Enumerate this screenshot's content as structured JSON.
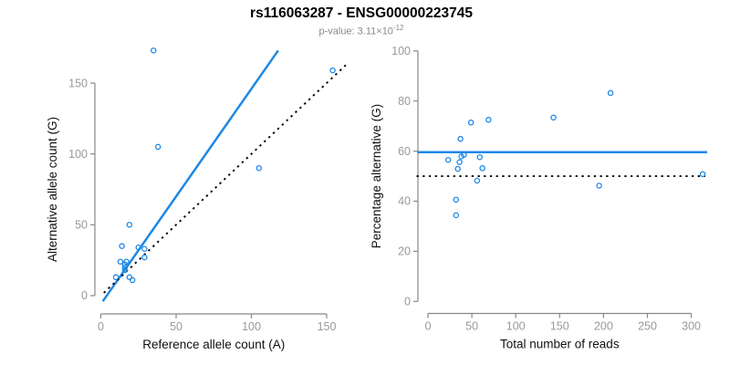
{
  "title": "rs116063287 - ENSG00000223745",
  "subtitle": {
    "text": "p-value: 3.11×10",
    "exponent": "-12"
  },
  "colors": {
    "accent_blue": "#1E88E5",
    "reference_black": "#000000",
    "axis_line": "#888888",
    "tick_label": "#999999",
    "axis_title": "#111111",
    "title_text": "#000000",
    "subtitle_text": "#8A8A8A",
    "background": "#FFFFFF"
  },
  "chart_data": [
    {
      "type": "scatter",
      "panel": "left",
      "xlabel": "Reference allele count (A)",
      "ylabel": "Alternative allele count (G)",
      "xticks": [
        0,
        50,
        100,
        150
      ],
      "yticks": [
        0,
        50,
        100,
        150
      ],
      "xlim": [
        -4,
        162
      ],
      "ylim": [
        -6,
        178
      ],
      "grid": false,
      "legend": "none",
      "points": [
        [
          35,
          173
        ],
        [
          38,
          105
        ],
        [
          105,
          90
        ],
        [
          154,
          159
        ],
        [
          19,
          50
        ],
        [
          14,
          35
        ],
        [
          13,
          24
        ],
        [
          16,
          22
        ],
        [
          17,
          24
        ],
        [
          25,
          34
        ],
        [
          10,
          13
        ],
        [
          16,
          20
        ],
        [
          16,
          18
        ],
        [
          29,
          33
        ],
        [
          29,
          27
        ],
        [
          19,
          13
        ],
        [
          21,
          11
        ]
      ],
      "lines": [
        {
          "name": "regression-line",
          "style": "solid",
          "color": "#1E88E5",
          "x1": 1.3,
          "y1": -4,
          "x2": 117.8,
          "y2": 173
        },
        {
          "name": "identity-line",
          "style": "dotted",
          "color": "#000000",
          "x1": 2,
          "y1": 2,
          "x2": 164,
          "y2": 164
        }
      ]
    },
    {
      "type": "scatter",
      "panel": "right",
      "xlabel": "Total number of reads",
      "ylabel": "Percentage alternative (G)",
      "xticks": [
        0,
        50,
        100,
        150,
        200,
        250,
        300
      ],
      "yticks": [
        0,
        20,
        40,
        60,
        80,
        100
      ],
      "xlim": [
        -14,
        326
      ],
      "ylim": [
        -5,
        101
      ],
      "grid": false,
      "legend": "none",
      "points": [
        [
          208,
          83.2
        ],
        [
          143,
          73.4
        ],
        [
          195,
          46.2
        ],
        [
          313,
          50.8
        ],
        [
          69,
          72.5
        ],
        [
          49,
          71.4
        ],
        [
          37,
          64.9
        ],
        [
          38,
          57.9
        ],
        [
          41,
          58.5
        ],
        [
          59,
          57.6
        ],
        [
          23,
          56.5
        ],
        [
          36,
          55.6
        ],
        [
          34,
          52.9
        ],
        [
          62,
          53.2
        ],
        [
          56,
          48.2
        ],
        [
          32,
          40.6
        ],
        [
          32,
          34.4
        ]
      ],
      "lines": [
        {
          "name": "mean-percentage-line",
          "style": "solid",
          "color": "#1E88E5",
          "x1": -12,
          "y1": 59.6,
          "x2": 318,
          "y2": 59.6
        },
        {
          "name": "fifty-percent-reference-line",
          "style": "dotted",
          "color": "#000000",
          "x1": -13,
          "y1": 50,
          "x2": 316,
          "y2": 50
        }
      ]
    }
  ]
}
